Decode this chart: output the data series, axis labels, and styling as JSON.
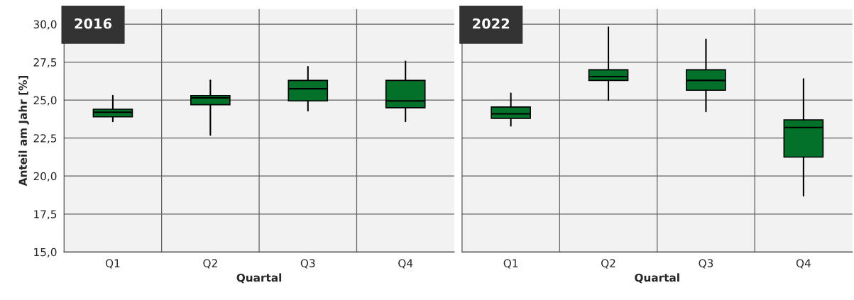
{
  "chart_data": [
    {
      "type": "box",
      "title": "2016",
      "xlabel": "Quartal",
      "ylabel": "Anteil am Jahr [%]",
      "categories": [
        "Q1",
        "Q2",
        "Q3",
        "Q4"
      ],
      "color": "#037129",
      "boxes": [
        {
          "low": 23.6,
          "q1": 23.9,
          "median": 24.2,
          "q3": 24.4,
          "high": 25.3
        },
        {
          "low": 22.7,
          "q1": 24.7,
          "median": 25.15,
          "q3": 25.3,
          "high": 26.3
        },
        {
          "low": 24.3,
          "q1": 24.95,
          "median": 25.75,
          "q3": 26.3,
          "high": 27.2
        },
        {
          "low": 23.6,
          "q1": 24.5,
          "median": 24.95,
          "q3": 26.3,
          "high": 27.55
        }
      ],
      "ylim": [
        15,
        31
      ],
      "yticks": [
        {
          "value": 15,
          "label": "15,0"
        },
        {
          "value": 17.5,
          "label": "17,5"
        },
        {
          "value": 20,
          "label": "20,0"
        },
        {
          "value": 22.5,
          "label": "22,5"
        },
        {
          "value": 25,
          "label": "25,0"
        },
        {
          "value": 27.5,
          "label": "27,5"
        },
        {
          "value": 30,
          "label": "30,0"
        }
      ],
      "grid": true
    },
    {
      "type": "box",
      "title": "2022",
      "xlabel": "Quartal",
      "categories": [
        "Q1",
        "Q2",
        "Q3",
        "Q4"
      ],
      "color": "#037129",
      "boxes": [
        {
          "low": 23.3,
          "q1": 23.8,
          "median": 24.1,
          "q3": 24.55,
          "high": 25.45
        },
        {
          "low": 25.0,
          "q1": 26.3,
          "median": 26.55,
          "q3": 27.0,
          "high": 29.8
        },
        {
          "low": 24.25,
          "q1": 25.65,
          "median": 26.3,
          "q3": 27.0,
          "high": 29.0
        },
        {
          "low": 18.7,
          "q1": 21.25,
          "median": 23.2,
          "q3": 23.7,
          "high": 26.4
        }
      ],
      "ylim": [
        15,
        31
      ],
      "yticks": [
        {
          "value": 15,
          "label": null
        },
        {
          "value": 17.5,
          "label": null
        },
        {
          "value": 20,
          "label": null
        },
        {
          "value": 22.5,
          "label": null
        },
        {
          "value": 25,
          "label": null
        },
        {
          "value": 27.5,
          "label": null
        },
        {
          "value": 30,
          "label": null
        }
      ],
      "grid": true,
      "tick_labels": "x"
    }
  ]
}
